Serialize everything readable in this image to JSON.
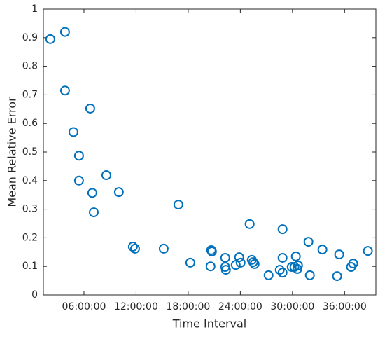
{
  "chart_data": {
    "type": "scatter",
    "x_label": "Time Interval",
    "y_label": "Mean Relative Error",
    "x": [
      2.13,
      3.82,
      3.82,
      4.79,
      5.43,
      5.43,
      6.72,
      6.96,
      7.13,
      8.58,
      10.02,
      11.63,
      11.88,
      15.18,
      16.87,
      18.24,
      20.57,
      20.65,
      20.73,
      22.26,
      22.26,
      22.34,
      23.47,
      23.87,
      24.03,
      25.07,
      25.32,
      25.48,
      25.64,
      27.25,
      28.54,
      28.86,
      28.86,
      28.86,
      29.91,
      30.23,
      30.39,
      30.56,
      30.64,
      31.84,
      32.0,
      33.45,
      35.14,
      35.38,
      36.75,
      36.99,
      38.68
    ],
    "values": [
      0.895,
      0.92,
      0.715,
      0.57,
      0.487,
      0.4,
      0.652,
      0.357,
      0.289,
      0.419,
      0.36,
      0.169,
      0.162,
      0.162,
      0.316,
      0.113,
      0.1,
      0.157,
      0.152,
      0.13,
      0.098,
      0.088,
      0.105,
      0.132,
      0.113,
      0.248,
      0.123,
      0.115,
      0.108,
      0.069,
      0.088,
      0.078,
      0.23,
      0.13,
      0.098,
      0.098,
      0.135,
      0.091,
      0.103,
      0.186,
      0.069,
      0.159,
      0.066,
      0.142,
      0.098,
      0.11,
      0.154
    ],
    "color": "#0072bd",
    "xlim": [
      1.33,
      39.6
    ],
    "xticks": [
      {
        "value": 6,
        "label": "06:00:00"
      },
      {
        "value": 12,
        "label": "12:00:00"
      },
      {
        "value": 18,
        "label": "18:00:00"
      },
      {
        "value": 24,
        "label": "24:00:00"
      },
      {
        "value": 30,
        "label": "30:00:00"
      },
      {
        "value": 36,
        "label": "36:00:00"
      }
    ],
    "ylim": [
      0,
      1
    ],
    "yticks": [
      0,
      0.1,
      0.2,
      0.3,
      0.4,
      0.5,
      0.6,
      0.7,
      0.8,
      0.9,
      1
    ]
  }
}
